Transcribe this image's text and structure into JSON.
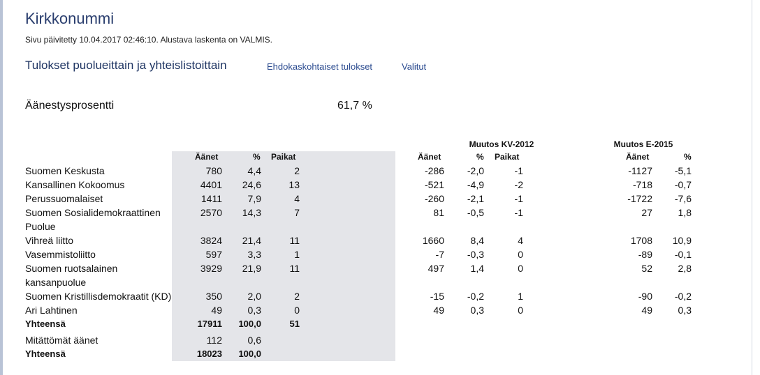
{
  "page": {
    "title": "Kirkkonummi",
    "updated": "Sivu päivitetty 10.04.2017 02:46:10. Alustava laskenta on VALMIS.",
    "tabs": {
      "active": "Tulokset puolueittain ja yhteislistoittain",
      "candidates": "Ehdokaskohtaiset tulokset",
      "elected": "Valitut"
    },
    "turnout": {
      "label": "Äänestysprosentti",
      "value": "61,7 %"
    }
  },
  "table": {
    "headers": {
      "votes": "Äänet",
      "pct": "%",
      "seats": "Paikat",
      "change_kv": "Muutos KV-2012",
      "change_e": "Muutos E-2015",
      "kv_votes": "Äänet",
      "kv_pct": "%",
      "kv_seats": "Paikat",
      "e_votes": "Äänet",
      "e_pct": "%"
    },
    "rows": [
      {
        "name": "Suomen Keskusta",
        "votes": "780",
        "pct": "4,4",
        "seats": "2",
        "kv_votes": "-286",
        "kv_pct": "-2,0",
        "kv_seats": "-1",
        "e_votes": "-1127",
        "e_pct": "-5,1"
      },
      {
        "name": "Kansallinen Kokoomus",
        "votes": "4401",
        "pct": "24,6",
        "seats": "13",
        "kv_votes": "-521",
        "kv_pct": "-4,9",
        "kv_seats": "-2",
        "e_votes": "-718",
        "e_pct": "-0,7"
      },
      {
        "name": "Perussuomalaiset",
        "votes": "1411",
        "pct": "7,9",
        "seats": "4",
        "kv_votes": "-260",
        "kv_pct": "-2,1",
        "kv_seats": "-1",
        "e_votes": "-1722",
        "e_pct": "-7,6"
      },
      {
        "name": "Suomen Sosialidemokraattinen",
        "votes": "2570",
        "pct": "14,3",
        "seats": "7",
        "kv_votes": "81",
        "kv_pct": "-0,5",
        "kv_seats": "-1",
        "e_votes": "27",
        "e_pct": "1,8"
      },
      {
        "name": "Puolue",
        "votes": "",
        "pct": "",
        "seats": "",
        "kv_votes": "",
        "kv_pct": "",
        "kv_seats": "",
        "e_votes": "",
        "e_pct": ""
      },
      {
        "name": "Vihreä liitto",
        "votes": "3824",
        "pct": "21,4",
        "seats": "11",
        "kv_votes": "1660",
        "kv_pct": "8,4",
        "kv_seats": "4",
        "e_votes": "1708",
        "e_pct": "10,9"
      },
      {
        "name": "Vasemmistoliitto",
        "votes": "597",
        "pct": "3,3",
        "seats": "1",
        "kv_votes": "-7",
        "kv_pct": "-0,3",
        "kv_seats": "0",
        "e_votes": "-89",
        "e_pct": "-0,1"
      },
      {
        "name": "Suomen ruotsalainen",
        "votes": "3929",
        "pct": "21,9",
        "seats": "11",
        "kv_votes": "497",
        "kv_pct": "1,4",
        "kv_seats": "0",
        "e_votes": "52",
        "e_pct": "2,8"
      },
      {
        "name": "kansanpuolue",
        "votes": "",
        "pct": "",
        "seats": "",
        "kv_votes": "",
        "kv_pct": "",
        "kv_seats": "",
        "e_votes": "",
        "e_pct": ""
      },
      {
        "name": "Suomen Kristillisdemokraatit (KD)",
        "votes": "350",
        "pct": "2,0",
        "seats": "2",
        "kv_votes": "-15",
        "kv_pct": "-0,2",
        "kv_seats": "1",
        "e_votes": "-90",
        "e_pct": "-0,2"
      },
      {
        "name": "Ari Lahtinen",
        "votes": "49",
        "pct": "0,3",
        "seats": "0",
        "kv_votes": "49",
        "kv_pct": "0,3",
        "kv_seats": "0",
        "e_votes": "49",
        "e_pct": "0,3"
      }
    ],
    "total1": {
      "name": "Yhteensä",
      "votes": "17911",
      "pct": "100,0",
      "seats": "51"
    },
    "invalid": {
      "name": "Mitättömät äänet",
      "votes": "112",
      "pct": "0,6"
    },
    "total2": {
      "name": "Yhteensä",
      "votes": "18023",
      "pct": "100,0"
    }
  }
}
